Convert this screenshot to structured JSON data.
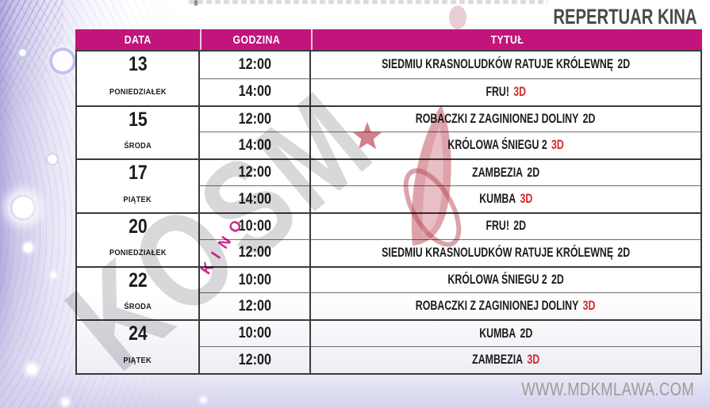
{
  "page": {
    "title": "REPERTUAR KINA",
    "url": "WWW.MDKMLAWA.COM"
  },
  "watermark": {
    "kino": "KINO",
    "kosmos": "KOSM"
  },
  "colors": {
    "magenta": "#c1157c",
    "red_3d": "#d12b2e",
    "text": "#1c1c1c",
    "grid": "#3a3a3a",
    "inner_line": "#6e6e6e",
    "title_gray": "#4a4a4a",
    "url_gray": "#9b9b9b",
    "watermark_gray": "#d6d6da",
    "watermark_red": "#bb4a59"
  },
  "table": {
    "columns": [
      {
        "label": "DATA"
      },
      {
        "label": "GODZINA"
      },
      {
        "label": "TYTUŁ"
      }
    ],
    "groups": [
      {
        "date": "13",
        "day": "PONIEDZIAŁEK",
        "shows": [
          {
            "time": "12:00",
            "title": "SIEDMIU KRASNOLUDKÓW RATUJE KRÓLEWNĘ",
            "format": "2D",
            "format_color": "#1c1c1c"
          },
          {
            "time": "14:00",
            "title": "FRU!",
            "format": "3D",
            "format_color": "#d12b2e"
          }
        ]
      },
      {
        "date": "15",
        "day": "ŚRODA",
        "shows": [
          {
            "time": "12:00",
            "title": "ROBACZKI Z ZAGINIONEJ DOLINY",
            "format": "2D",
            "format_color": "#1c1c1c"
          },
          {
            "time": "14:00",
            "title": "KRÓLOWA ŚNIEGU 2",
            "format": "3D",
            "format_color": "#d12b2e"
          }
        ]
      },
      {
        "date": "17",
        "day": "PIĄTEK",
        "shows": [
          {
            "time": "12:00",
            "title": "ZAMBEZIA",
            "format": "2D",
            "format_color": "#1c1c1c"
          },
          {
            "time": "14:00",
            "title": "KUMBA",
            "format": "3D",
            "format_color": "#d12b2e"
          }
        ]
      },
      {
        "date": "20",
        "day": "PONIEDZIAŁEK",
        "shows": [
          {
            "time": "10:00",
            "title": "FRU!",
            "format": "2D",
            "format_color": "#1c1c1c"
          },
          {
            "time": "12:00",
            "title": "SIEDMIU KRASNOLUDKÓW RATUJE KRÓLEWNĘ",
            "format": "2D",
            "format_color": "#1c1c1c"
          }
        ]
      },
      {
        "date": "22",
        "day": "ŚRODA",
        "shows": [
          {
            "time": "10:00",
            "title": "KRÓLOWA ŚNIEGU 2",
            "format": "2D",
            "format_color": "#1c1c1c"
          },
          {
            "time": "12:00",
            "title": "ROBACZKI Z ZAGINIONEJ DOLINY",
            "format": "3D",
            "format_color": "#d12b2e"
          }
        ]
      },
      {
        "date": "24",
        "day": "PIĄTEK",
        "shows": [
          {
            "time": "10:00",
            "title": "KUMBA",
            "format": "2D",
            "format_color": "#1c1c1c"
          },
          {
            "time": "12:00",
            "title": "ZAMBEZIA",
            "format": "3D",
            "format_color": "#d12b2e"
          }
        ]
      }
    ]
  }
}
